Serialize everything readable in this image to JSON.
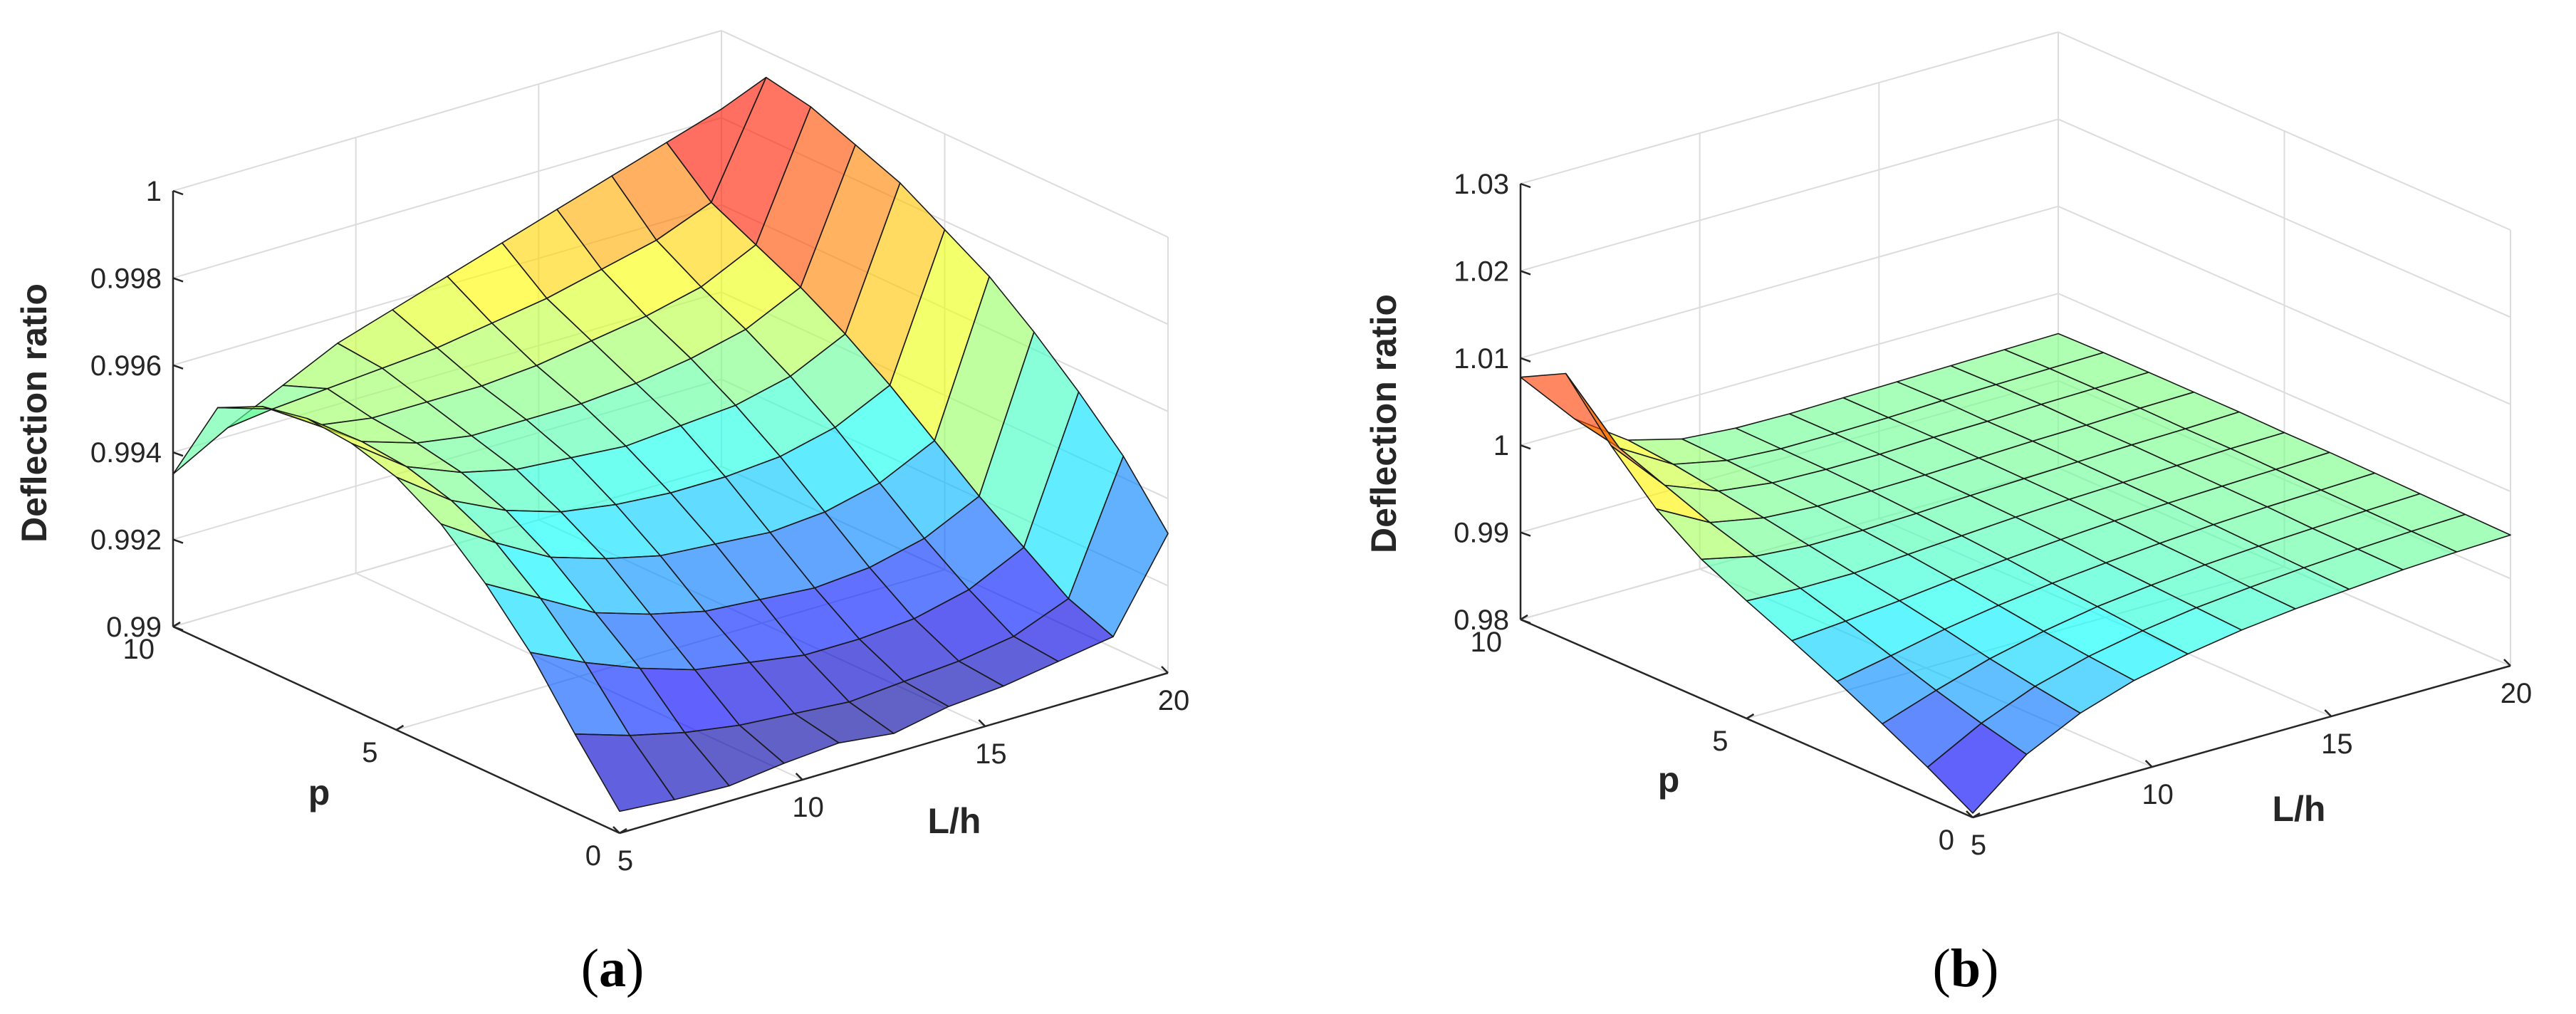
{
  "figure_labels": {
    "a": {
      "open": "(",
      "letter": "a",
      "close": ")"
    },
    "b": {
      "open": "(",
      "letter": "b",
      "close": ")"
    }
  },
  "chart_data": [
    {
      "id": "a",
      "type": "surface3d",
      "xlabel": "L/h",
      "ylabel": "p",
      "zlabel": "Deflection ratio",
      "xlim": [
        5,
        20
      ],
      "ylim": [
        0,
        10
      ],
      "zlim": [
        0.99,
        1.0
      ],
      "x_ticks": [
        "5",
        "10",
        "15",
        "20"
      ],
      "y_ticks": [
        "0",
        "5",
        "10"
      ],
      "z_ticks": [
        "0.99",
        "0.992",
        "0.994",
        "0.996",
        "0.998",
        "1"
      ],
      "grid": true,
      "colormap": "jet",
      "x": [
        5,
        6.5,
        8,
        9.5,
        11,
        12.5,
        14,
        15.5,
        17,
        18.5,
        20
      ],
      "y": [
        0,
        1,
        2,
        3,
        4,
        5,
        6,
        7,
        8,
        9,
        10
      ],
      "z": [
        [
          0.9905,
          0.9904,
          0.99035,
          0.9905,
          0.9906,
          0.99045,
          0.9907,
          0.9908,
          0.991,
          0.9912,
          0.9932
        ],
        [
          0.9918,
          0.9914,
          0.9911,
          0.9909,
          0.9908,
          0.9907,
          0.9908,
          0.9909,
          0.9911,
          0.9916,
          0.9945
        ],
        [
          0.9932,
          0.9926,
          0.9921,
          0.9917,
          0.9915,
          0.9913,
          0.9913,
          0.9914,
          0.9917,
          0.9923,
          0.9955
        ],
        [
          0.9943,
          0.9936,
          0.9929,
          0.9925,
          0.9922,
          0.9921,
          0.992,
          0.9921,
          0.9924,
          0.993,
          0.9964
        ],
        [
          0.9952,
          0.9944,
          0.9937,
          0.9933,
          0.993,
          0.9929,
          0.9928,
          0.9929,
          0.9932,
          0.9938,
          0.9972
        ],
        [
          0.9958,
          0.9949,
          0.9943,
          0.9939,
          0.9937,
          0.9936,
          0.9936,
          0.9937,
          0.994,
          0.9946,
          0.9978
        ],
        [
          0.9961,
          0.9952,
          0.9947,
          0.9944,
          0.9943,
          0.9942,
          0.9943,
          0.9944,
          0.9947,
          0.9953,
          0.9984
        ],
        [
          0.9962,
          0.9953,
          0.9949,
          0.9947,
          0.9947,
          0.9947,
          0.9948,
          0.995,
          0.9953,
          0.9959,
          0.9988
        ],
        [
          0.996,
          0.9952,
          0.995,
          0.995,
          0.995,
          0.9951,
          0.9953,
          0.9955,
          0.9958,
          0.9964,
          0.9992
        ],
        [
          0.9955,
          0.9951,
          0.9952,
          0.9953,
          0.9954,
          0.9956,
          0.9958,
          0.9961,
          0.9964,
          0.9969,
          0.9994
        ],
        [
          0.9935,
          0.9942,
          0.9948,
          0.9954,
          0.9958,
          0.9962,
          0.9966,
          0.997,
          0.9974,
          0.9978,
          0.9982
        ]
      ]
    },
    {
      "id": "b",
      "type": "surface3d",
      "xlabel": "L/h",
      "ylabel": "p",
      "zlabel": "Deflection ratio",
      "xlim": [
        5,
        20
      ],
      "ylim": [
        0,
        10
      ],
      "zlim": [
        0.98,
        1.03
      ],
      "x_ticks": [
        "5",
        "10",
        "15",
        "20"
      ],
      "y_ticks": [
        "0",
        "5",
        "10"
      ],
      "z_ticks": [
        "0.98",
        "0.99",
        "1",
        "1.01",
        "1.02",
        "1.03"
      ],
      "grid": true,
      "colormap": "jet",
      "x": [
        5,
        6.5,
        8,
        9.5,
        11,
        12.5,
        14,
        15.5,
        17,
        18.5,
        20
      ],
      "y": [
        0,
        1,
        2,
        3,
        4,
        5,
        6,
        7,
        8,
        9,
        10
      ],
      "z": [
        [
          0.9805,
          0.9855,
          0.9885,
          0.9905,
          0.9918,
          0.9928,
          0.9935,
          0.994,
          0.9945,
          0.9948,
          0.995
        ],
        [
          0.9835,
          0.9868,
          0.9893,
          0.991,
          0.9922,
          0.9931,
          0.9937,
          0.9942,
          0.9946,
          0.9949,
          0.9951
        ],
        [
          0.9862,
          0.9883,
          0.9902,
          0.9916,
          0.9927,
          0.9934,
          0.994,
          0.9944,
          0.9947,
          0.995,
          0.9952
        ],
        [
          0.9888,
          0.99,
          0.9913,
          0.9923,
          0.9931,
          0.9937,
          0.9942,
          0.9946,
          0.9949,
          0.9951,
          0.9953
        ],
        [
          0.9912,
          0.9917,
          0.9923,
          0.993,
          0.9936,
          0.9941,
          0.9945,
          0.9948,
          0.995,
          0.9952,
          0.9954
        ],
        [
          0.9935,
          0.9932,
          0.9932,
          0.9936,
          0.994,
          0.9944,
          0.9947,
          0.9949,
          0.9951,
          0.9953,
          0.9954
        ],
        [
          0.996,
          0.9946,
          0.9941,
          0.9941,
          0.9943,
          0.9946,
          0.9948,
          0.995,
          0.9952,
          0.9953,
          0.9955
        ],
        [
          0.9995,
          0.9962,
          0.995,
          0.9946,
          0.9946,
          0.9947,
          0.9949,
          0.9951,
          0.9952,
          0.9954,
          0.9955
        ],
        [
          1.0045,
          0.9982,
          0.9958,
          0.995,
          0.9948,
          0.9948,
          0.995,
          0.9951,
          0.9953,
          0.9954,
          0.9955
        ],
        [
          1.0105,
          1.0002,
          0.9966,
          0.9953,
          0.9949,
          0.9949,
          0.995,
          0.9952,
          0.9953,
          0.9954,
          0.9955
        ],
        [
          1.0078,
          1.0013,
          0.9971,
          0.9955,
          0.995,
          0.9949,
          0.995,
          0.9951,
          0.9952,
          0.9953,
          0.9954
        ]
      ]
    }
  ]
}
